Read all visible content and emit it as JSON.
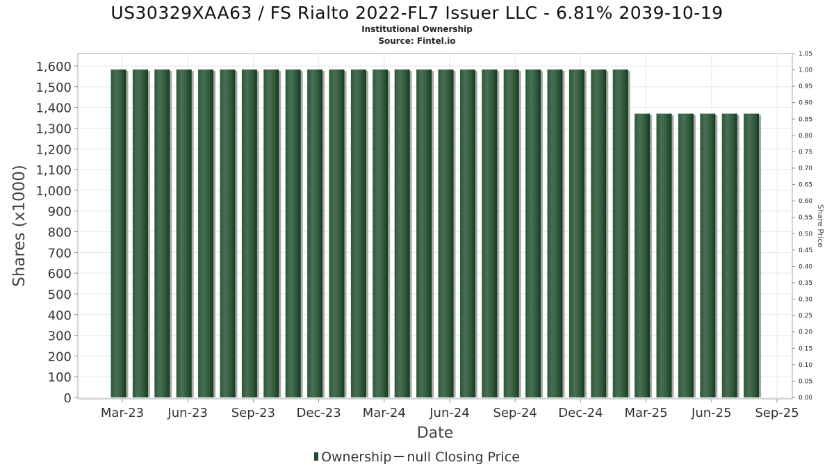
{
  "chart_data": {
    "type": "bar",
    "title": "US30329XAA63 / FS Rialto 2022-FL7 Issuer LLC - 6.81% 2039-10-19",
    "subtitle_lines": [
      "Institutional Ownership",
      "Source: Fintel.io"
    ],
    "xlabel": "Date",
    "ylabel": "Shares (x1000)",
    "y2label": "Share Price",
    "ylim": [
      0,
      1600
    ],
    "y2lim": [
      0,
      1.05
    ],
    "y_ticks": [
      "0",
      "100",
      "200",
      "300",
      "400",
      "500",
      "600",
      "700",
      "800",
      "900",
      "1,000",
      "1,100",
      "1,200",
      "1,300",
      "1,400",
      "1,500",
      "1,600"
    ],
    "y2_ticks": [
      "0.00",
      "0.05",
      "0.10",
      "0.15",
      "0.20",
      "0.25",
      "0.30",
      "0.35",
      "0.40",
      "0.45",
      "0.50",
      "0.55",
      "0.60",
      "0.65",
      "0.70",
      "0.75",
      "0.80",
      "0.85",
      "0.90",
      "0.95",
      "1.00",
      "1.05"
    ],
    "x_ticks": [
      "Mar-23",
      "Jun-23",
      "Sep-23",
      "Dec-23",
      "Mar-24",
      "Jun-24",
      "Sep-24",
      "Dec-24",
      "Mar-25",
      "Jun-25",
      "Sep-25"
    ],
    "grid": true,
    "legend_position": "bottom",
    "series": [
      {
        "name": "Ownership",
        "color": "#1f4a2c",
        "values": [
          1583,
          1583,
          1583,
          1583,
          1583,
          1583,
          1583,
          1583,
          1583,
          1583,
          1583,
          1583,
          1583,
          1583,
          1583,
          1583,
          1583,
          1583,
          1583,
          1583,
          1583,
          1583,
          1583,
          1583,
          1370,
          1370,
          1370,
          1370,
          1370,
          1370
        ]
      }
    ],
    "legend": [
      {
        "label": "Ownership",
        "kind": "bar"
      },
      {
        "label": "null Closing Price",
        "kind": "line"
      }
    ]
  }
}
